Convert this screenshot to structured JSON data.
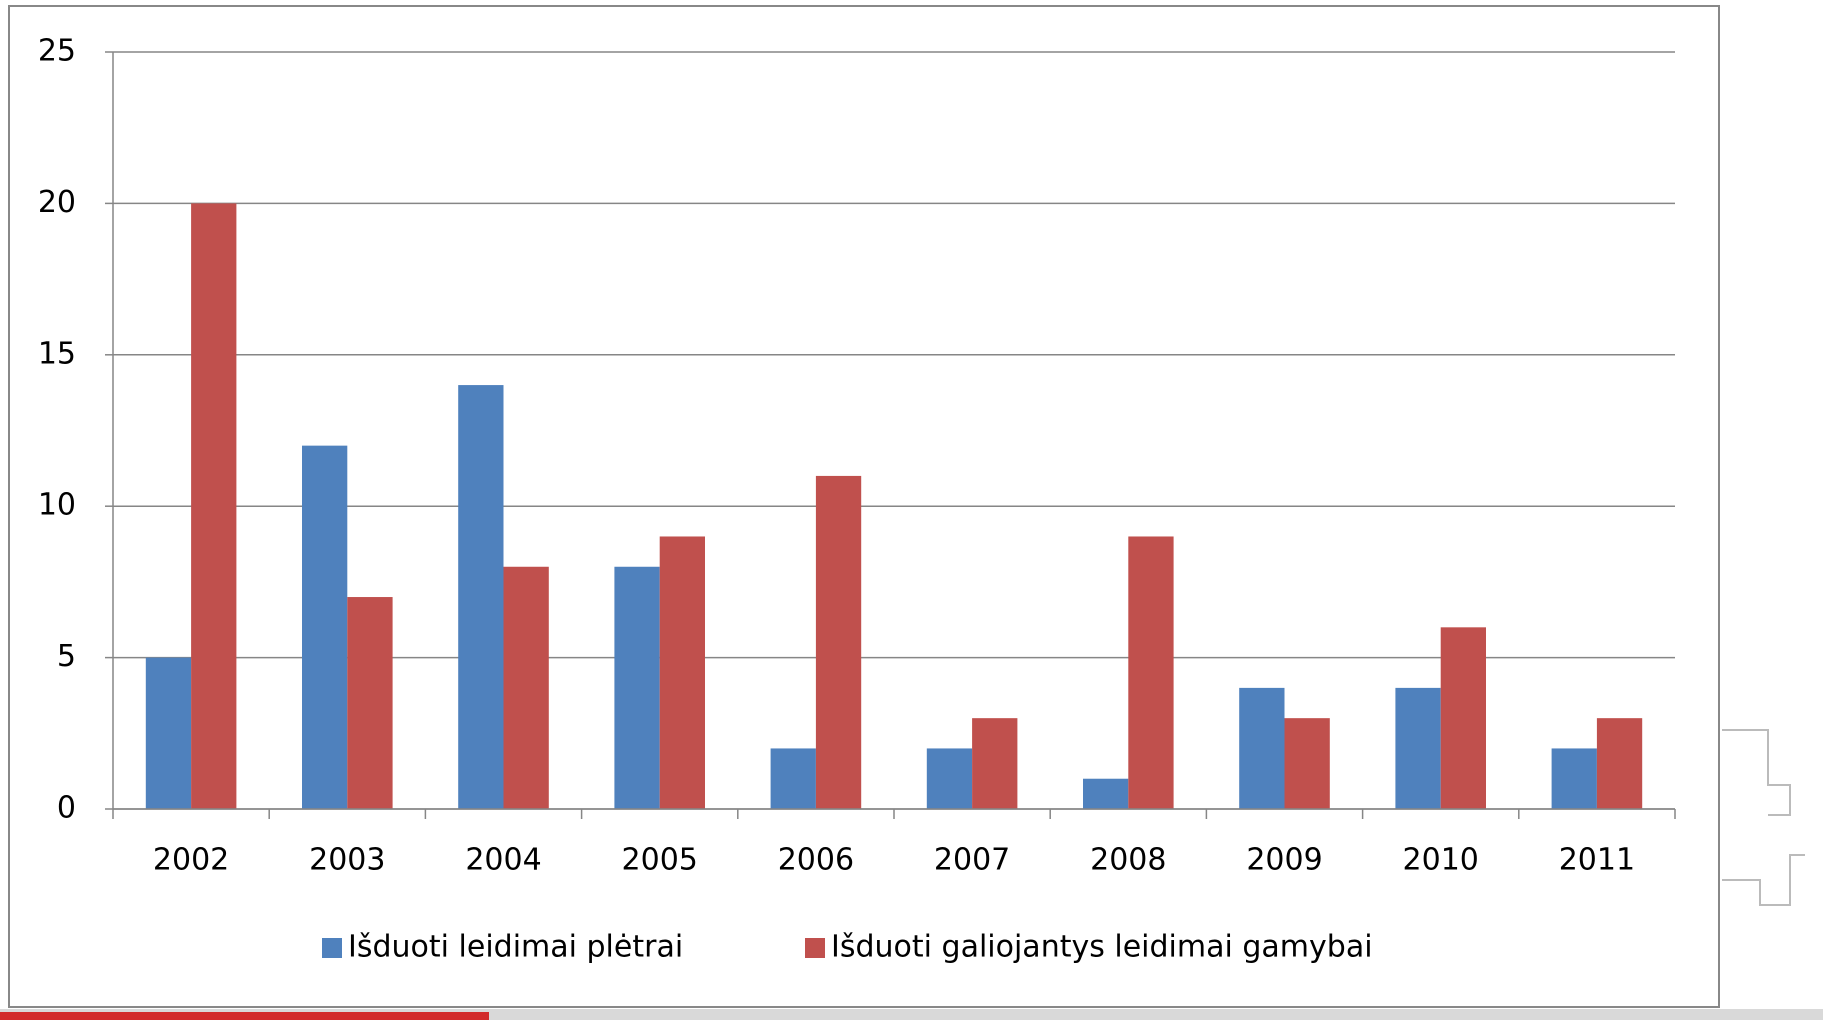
{
  "chart_data": {
    "type": "bar",
    "categories": [
      "2002",
      "2003",
      "2004",
      "2005",
      "2006",
      "2007",
      "2008",
      "2009",
      "2010",
      "2011"
    ],
    "series": [
      {
        "name": "Išduoti leidimai plėtrai",
        "color": "#4f81bd",
        "values": [
          5,
          12,
          14,
          8,
          2,
          2,
          1,
          4,
          4,
          2
        ]
      },
      {
        "name": "Išduoti galiojantys leidimai gamybai",
        "color": "#c0504d",
        "values": [
          20,
          7,
          8,
          9,
          11,
          3,
          9,
          3,
          6,
          3
        ]
      }
    ],
    "ylim": [
      0,
      25
    ],
    "yticks": [
      0,
      5,
      10,
      15,
      20,
      25
    ],
    "grid": true,
    "legend": "bottom"
  }
}
